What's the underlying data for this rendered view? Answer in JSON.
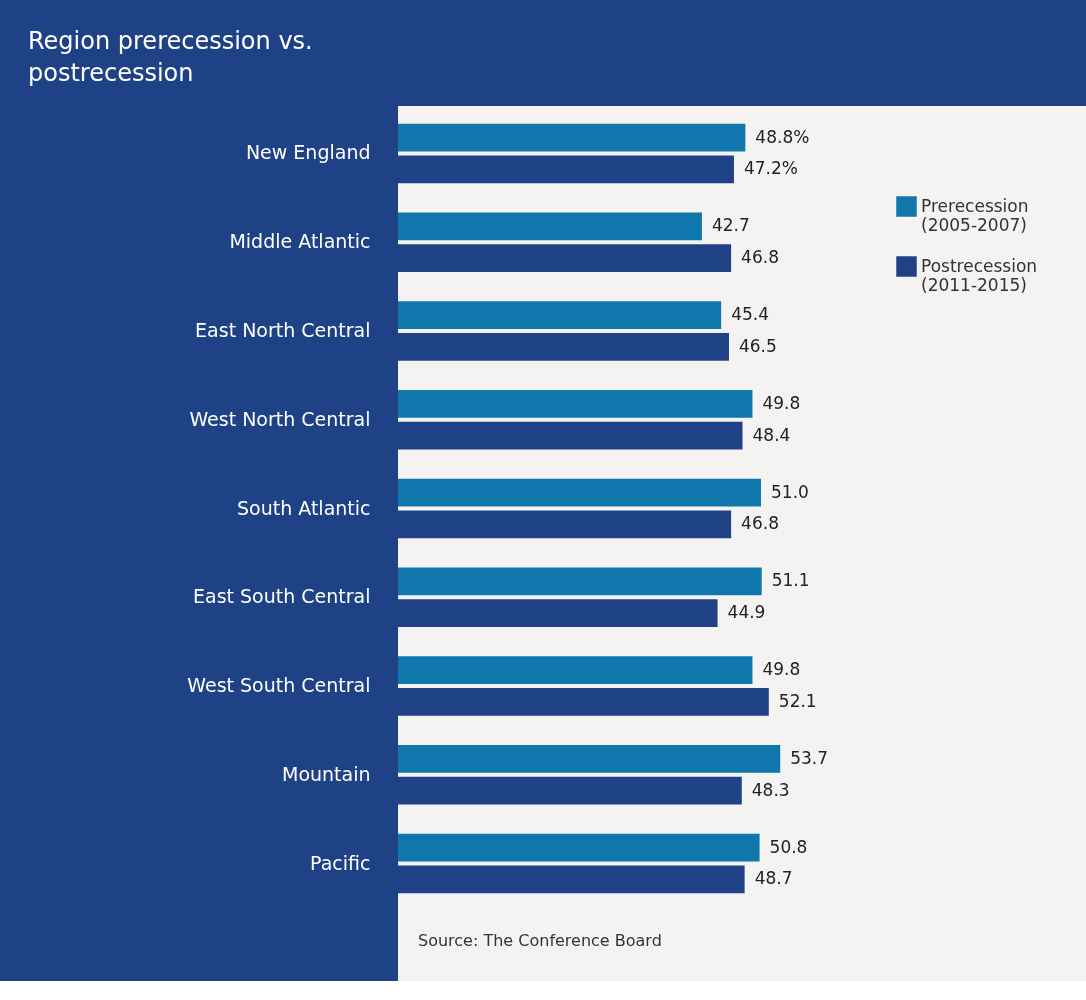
{
  "chart_data": {
    "type": "bar",
    "orientation": "horizontal",
    "title": "Region prerecession vs. postrecession",
    "categories": [
      "New England",
      "Middle Atlantic",
      "East North Central",
      "West North Central",
      "South Atlantic",
      "East South Central",
      "West South Central",
      "Mountain",
      "Pacific"
    ],
    "series": [
      {
        "name": "Prerecession (2005-2007)",
        "color": "#0f77ab",
        "values": [
          48.8,
          42.7,
          45.4,
          49.8,
          51.0,
          51.1,
          49.8,
          53.7,
          50.8
        ],
        "value_labels": [
          "48.8%",
          "42.7",
          "45.4",
          "49.8",
          "51.0",
          "51.1",
          "49.8",
          "53.7",
          "50.8"
        ]
      },
      {
        "name": "Postrecession (2011-2015)",
        "color": "#1f4287",
        "values": [
          47.2,
          46.8,
          46.5,
          48.4,
          46.8,
          44.9,
          52.1,
          48.3,
          48.7
        ],
        "value_labels": [
          "47.2%",
          "46.8",
          "46.5",
          "48.4",
          "46.8",
          "44.9",
          "52.1",
          "48.3",
          "48.7"
        ]
      }
    ],
    "legend": "right",
    "grid": false,
    "annotations": [
      "Source: The Conference Board"
    ]
  }
}
